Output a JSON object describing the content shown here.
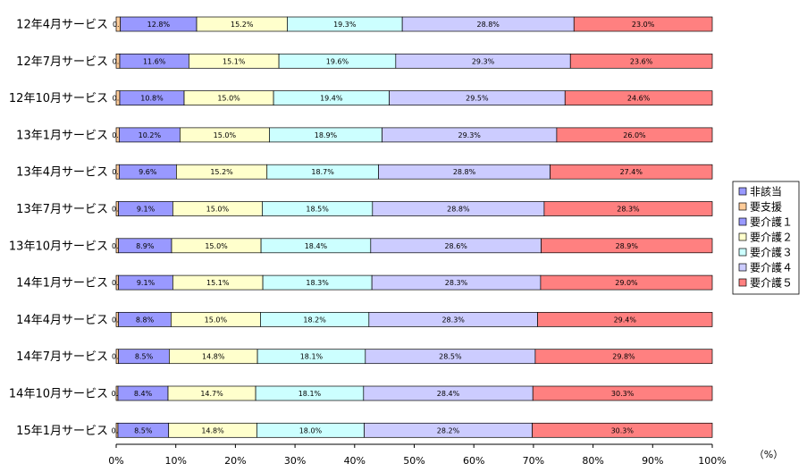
{
  "chart_data": {
    "type": "bar",
    "orientation": "horizontal",
    "stacked": true,
    "categories": [
      "12年4月サービス",
      "12年7月サービス",
      "12年10月サービス",
      "13年1月サービス",
      "13年4月サービス",
      "13年7月サービス",
      "13年10月サービス",
      "14年1月サービス",
      "14年4月サービス",
      "14年7月サービス",
      "14年10月サービス",
      "15年1月サービス"
    ],
    "series": [
      {
        "name": "非該当",
        "color": "#9999ff",
        "values": [
          0.0,
          0.0,
          0.0,
          0.0,
          0.0,
          0.0,
          0.0,
          0.0,
          0.0,
          0.0,
          0.0,
          0.0
        ],
        "labels": [
          "",
          "",
          "",
          "",
          "",
          "",
          "",
          "",
          "",
          "",
          "",
          ""
        ]
      },
      {
        "name": "要支援",
        "color": "#ffcc99",
        "values": [
          0.7,
          0.6,
          0.6,
          0.5,
          0.5,
          0.4,
          0.4,
          0.4,
          0.4,
          0.4,
          0.3,
          0.3
        ],
        "labels": [
          "0.7",
          "0.6",
          "0.6",
          "0.5",
          "0.5",
          "0.4",
          "0.4",
          "0.4",
          "0.4",
          "0.4",
          "0.3",
          "0.3"
        ]
      },
      {
        "name": "要介護１",
        "color": "#9999ff",
        "values": [
          12.8,
          11.6,
          10.8,
          10.2,
          9.6,
          9.1,
          8.9,
          9.1,
          8.8,
          8.5,
          8.4,
          8.5
        ],
        "labels": [
          "12.8%",
          "11.6%",
          "10.8%",
          "10.2%",
          "9.6%",
          "9.1%",
          "8.9%",
          "9.1%",
          "8.8%",
          "8.5%",
          "8.4%",
          "8.5%"
        ]
      },
      {
        "name": "要介護２",
        "color": "#ffffcc",
        "values": [
          15.2,
          15.1,
          15.0,
          15.0,
          15.2,
          15.0,
          15.0,
          15.1,
          15.0,
          14.8,
          14.7,
          14.8
        ],
        "labels": [
          "15.2%",
          "15.1%",
          "15.0%",
          "15.0%",
          "15.2%",
          "15.0%",
          "15.0%",
          "15.1%",
          "15.0%",
          "14.8%",
          "14.7%",
          "14.8%"
        ]
      },
      {
        "name": "要介護３",
        "color": "#ccffff",
        "values": [
          19.3,
          19.6,
          19.4,
          18.9,
          18.7,
          18.5,
          18.4,
          18.3,
          18.2,
          18.1,
          18.1,
          18.0
        ],
        "labels": [
          "19.3%",
          "19.6%",
          "19.4%",
          "18.9%",
          "18.7%",
          "18.5%",
          "18.4%",
          "18.3%",
          "18.2%",
          "18.1%",
          "18.1%",
          "18.0%"
        ]
      },
      {
        "name": "要介護４",
        "color": "#ccccff",
        "values": [
          28.8,
          29.3,
          29.5,
          29.3,
          28.8,
          28.8,
          28.6,
          28.3,
          28.3,
          28.5,
          28.4,
          28.2
        ],
        "labels": [
          "28.8%",
          "29.3%",
          "29.5%",
          "29.3%",
          "28.8%",
          "28.8%",
          "28.6%",
          "28.3%",
          "28.3%",
          "28.5%",
          "28.4%",
          "28.2%"
        ]
      },
      {
        "name": "要介護５",
        "color": "#ff8080",
        "values": [
          23.0,
          23.6,
          24.6,
          26.0,
          27.4,
          28.3,
          28.9,
          29.0,
          29.4,
          29.8,
          30.3,
          30.3
        ],
        "labels": [
          "23.0%",
          "23.6%",
          "24.6%",
          "26.0%",
          "27.4%",
          "28.3%",
          "28.9%",
          "29.0%",
          "29.4%",
          "29.8%",
          "30.3%",
          "30.3%"
        ]
      }
    ],
    "xlim": [
      0,
      100
    ],
    "xticks": [
      "0%",
      "10%",
      "20%",
      "30%",
      "40%",
      "50%",
      "60%",
      "70%",
      "80%",
      "90%",
      "100%"
    ],
    "xunit": "（%）",
    "legend_position": "right",
    "grid": false
  }
}
